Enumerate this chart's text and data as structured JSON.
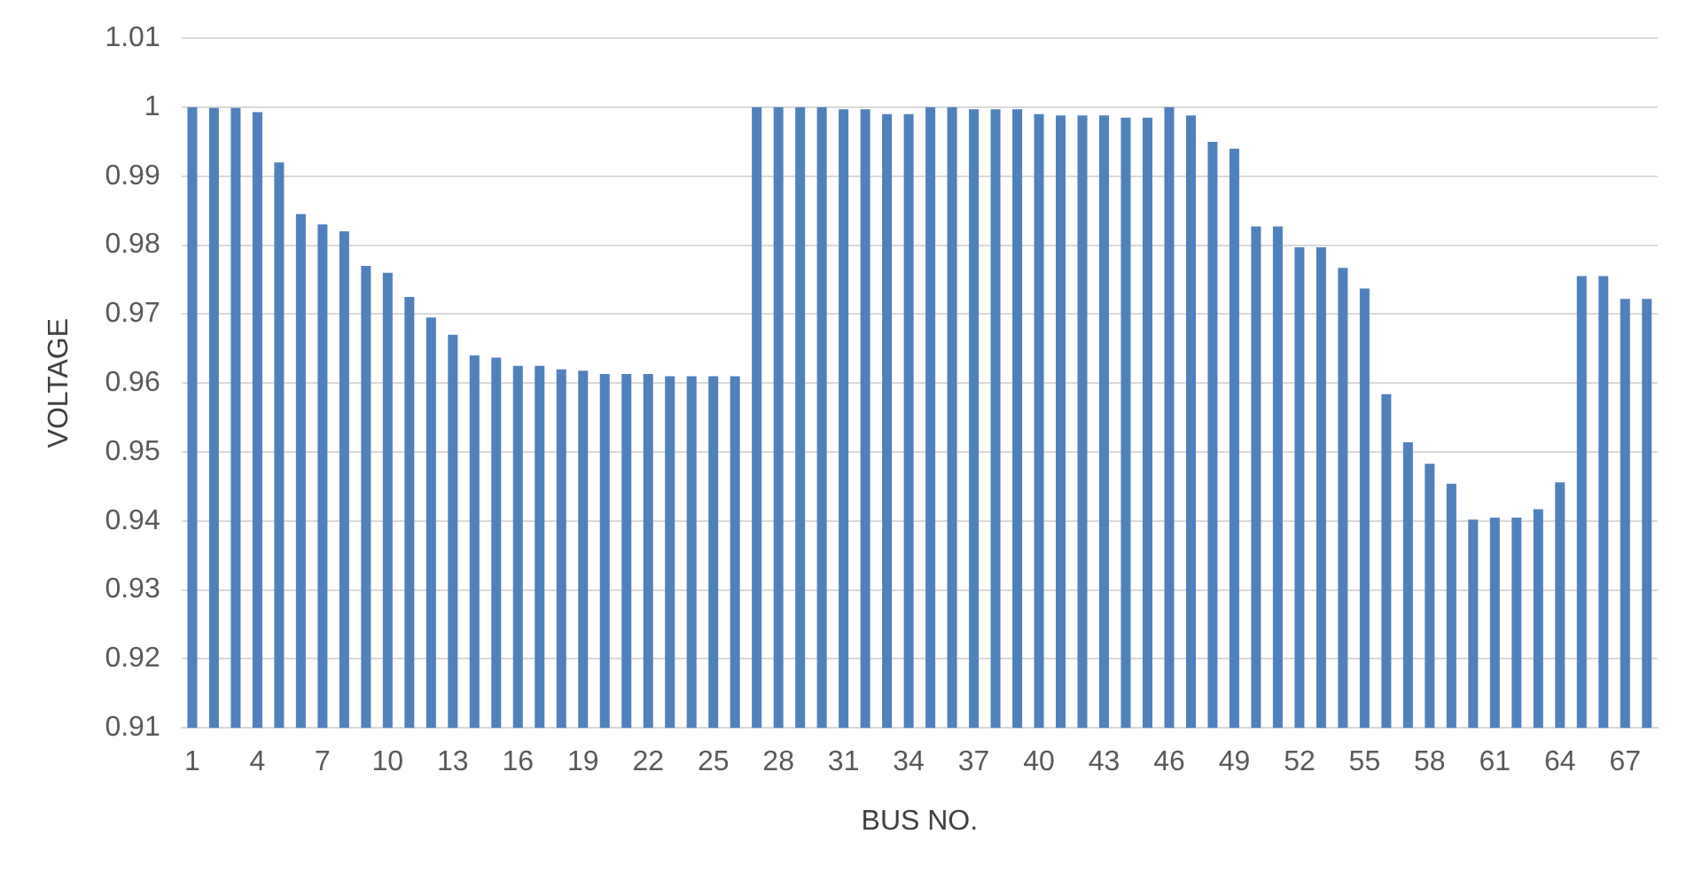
{
  "chart_data": {
    "type": "bar",
    "xlabel": "BUS NO.",
    "ylabel": "VOLTAGE",
    "color": "#4f81bd",
    "categories": [
      "1",
      null,
      null,
      "4",
      null,
      null,
      "7",
      null,
      null,
      "10",
      null,
      null,
      "13",
      null,
      null,
      "16",
      null,
      null,
      "19",
      null,
      null,
      "22",
      null,
      null,
      "25",
      null,
      null,
      "28",
      null,
      null,
      "31",
      null,
      null,
      "34",
      null,
      null,
      "37",
      null,
      null,
      "40",
      null,
      null,
      "43",
      null,
      null,
      "46",
      null,
      null,
      "49",
      null,
      null,
      "52",
      null,
      null,
      "55",
      null,
      null,
      "58",
      null,
      null,
      "61",
      null,
      null,
      "64",
      null,
      null,
      "67",
      null
    ],
    "values": [
      1.0,
      0.9999,
      0.9999,
      0.9993,
      0.992,
      0.9845,
      0.983,
      0.982,
      0.977,
      0.976,
      0.9725,
      0.9695,
      0.967,
      0.964,
      0.9637,
      0.9625,
      0.9625,
      0.962,
      0.9618,
      0.9613,
      0.9613,
      0.9613,
      0.961,
      0.961,
      0.961,
      0.961,
      1.0,
      1.0,
      1.0,
      1.0,
      0.9997,
      0.9997,
      0.999,
      0.999,
      1.0,
      1.0,
      0.9997,
      0.9997,
      0.9997,
      0.999,
      0.9988,
      0.9988,
      0.9988,
      0.9985,
      0.9985,
      1.0,
      0.9988,
      0.995,
      0.994,
      0.9827,
      0.9827,
      0.9797,
      0.9797,
      0.9767,
      0.9737,
      0.9584,
      0.9514,
      0.9483,
      0.9454,
      0.9402,
      0.9405,
      0.9405,
      0.9417,
      0.9456,
      0.9755,
      0.9755,
      0.9722,
      0.9722
    ],
    "ylim": [
      0.91,
      1.01
    ],
    "yticks": [
      0.91,
      0.92,
      0.93,
      0.94,
      0.95,
      0.96,
      0.97,
      0.98,
      0.99,
      1,
      1.01
    ],
    "grid": "y",
    "legend": false
  }
}
